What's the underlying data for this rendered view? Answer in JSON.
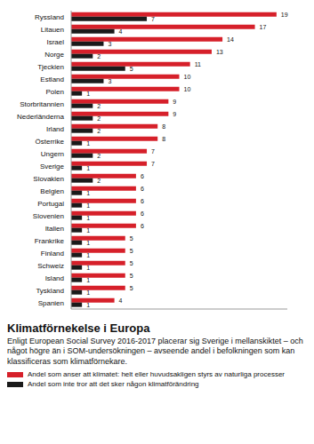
{
  "chart_data": {
    "type": "bar",
    "orientation": "horizontal",
    "title": "Klimatförnekelse i Europa",
    "subtitle": "Enligt European Social Survey 2016-2017 placerar sig Sverige i mellanskiktet – och något högre än i SOM-undersökningen – avseende andel i befolkningen som kan klassificeras som klimatförnekare.",
    "categories": [
      "Ryssland",
      "Litauen",
      "Israel",
      "Norge",
      "Tjeckien",
      "Estland",
      "Polen",
      "Storbritannien",
      "Nederländerna",
      "Irland",
      "Österrike",
      "Ungern",
      "Sverige",
      "Slovakien",
      "Belgien",
      "Portugal",
      "Slovenien",
      "Italien",
      "Frankrike",
      "Finland",
      "Schweiz",
      "Island",
      "Tyskland",
      "Spanien"
    ],
    "series": [
      {
        "name": "Andel som anser att klimatet: helt eller huvudsakligen styrs av naturliga processer",
        "color": "#d6202a",
        "values": [
          19,
          17,
          14,
          13,
          11,
          10,
          10,
          9,
          9,
          8,
          8,
          7,
          7,
          6,
          6,
          6,
          6,
          6,
          5,
          5,
          5,
          5,
          5,
          4
        ]
      },
      {
        "name": "Andel som inte tror att det sker någon klimatförändring",
        "color": "#1a1a1a",
        "values": [
          7,
          4,
          3,
          2,
          5,
          3,
          1,
          2,
          2,
          2,
          1,
          2,
          1,
          2,
          1,
          1,
          1,
          1,
          1,
          1,
          1,
          1,
          1,
          1
        ]
      }
    ],
    "xlim": [
      0,
      20
    ],
    "data_labels": true,
    "tick_labels": "y",
    "legend": "bottom"
  }
}
